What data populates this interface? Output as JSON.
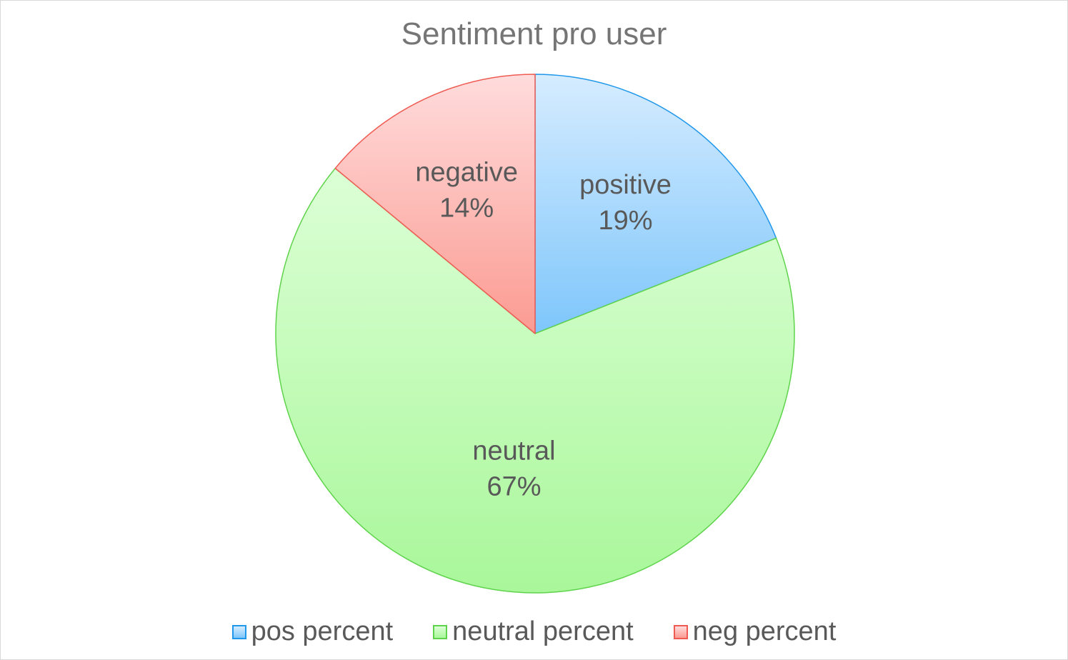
{
  "chart_data": {
    "type": "pie",
    "title": "Sentiment pro user",
    "categories": [
      "pos percent",
      "neutral percent",
      "neg percent"
    ],
    "values": [
      19,
      67,
      14
    ],
    "slice_labels": [
      {
        "name": "positive",
        "value": "19%"
      },
      {
        "name": "neutral",
        "value": "67%"
      },
      {
        "name": "negative",
        "value": "14%"
      }
    ],
    "start_angle_deg": 0,
    "direction": "clockwise",
    "legend_position": "bottom",
    "colors": [
      {
        "fill_top": "#d6ecff",
        "fill_bottom": "#7ec6fb",
        "stroke": "#1f97ea"
      },
      {
        "fill_top": "#dcffd6",
        "fill_bottom": "#a9f79a",
        "stroke": "#5fd34c"
      },
      {
        "fill_top": "#ffdcdc",
        "fill_bottom": "#fb9b92",
        "stroke": "#ef5b52"
      }
    ]
  }
}
